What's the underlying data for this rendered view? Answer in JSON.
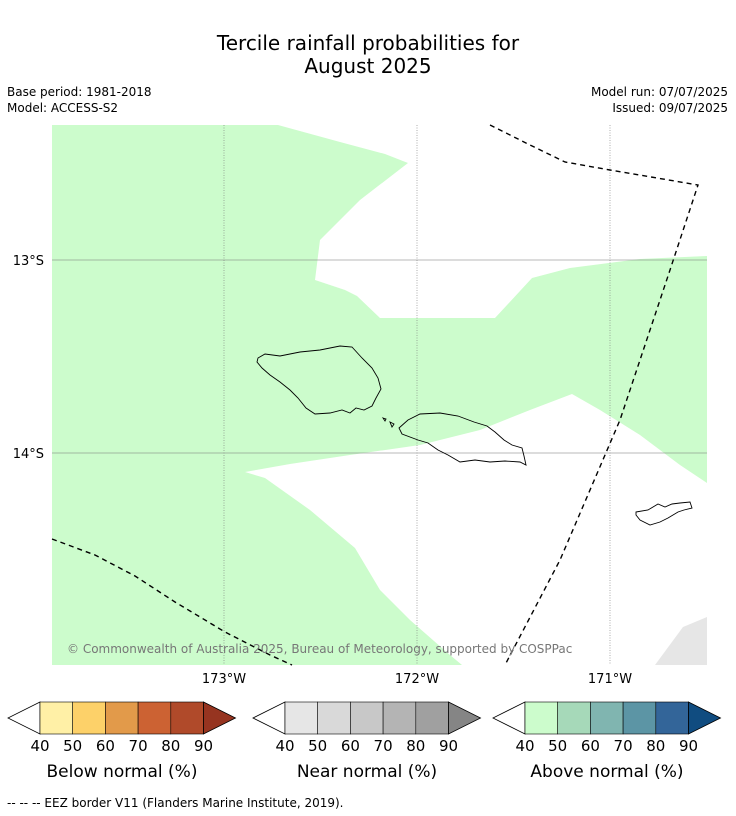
{
  "header": {
    "title_line1": "Tercile rainfall probabilities for",
    "title_line2": "August 2025",
    "base_period": "Base period: 1981-2018",
    "model": "Model: ACCESS-S2",
    "model_run": "Model run: 07/07/2025",
    "issued": "Issued: 09/07/2025"
  },
  "map": {
    "lat_labels": [
      "13°S",
      "14°S"
    ],
    "lon_labels": [
      "173°W",
      "172°W",
      "171°W"
    ],
    "copyright": "© Commonwealth of Australia 2025, Bureau of Meteorology, supported by COSPPac",
    "colors": {
      "above_40_50": "#ccfccc",
      "near_40_50": "#e6e6e6",
      "land_outline": "#000000",
      "gridline": "#888888"
    }
  },
  "legend": {
    "ticks": [
      "40",
      "50",
      "60",
      "70",
      "80",
      "90"
    ],
    "below": {
      "label": "Below normal (%)",
      "colors": [
        "#fff0a6",
        "#fdd169",
        "#e29a4a",
        "#cc6233",
        "#b04a2a",
        "#963420"
      ]
    },
    "near": {
      "label": "Near normal (%)",
      "colors": [
        "#e6e6e6",
        "#d9d9d9",
        "#c8c8c8",
        "#b4b4b4",
        "#a0a0a0",
        "#858585"
      ]
    },
    "above": {
      "label": "Above normal (%)",
      "colors": [
        "#ccfccc",
        "#a6d9b9",
        "#80b5b0",
        "#5c95a5",
        "#336599",
        "#104c80"
      ]
    }
  },
  "footer": {
    "eez_note": "--  --  -- EEZ border V11 (Flanders Marine Institute, 2019)."
  }
}
